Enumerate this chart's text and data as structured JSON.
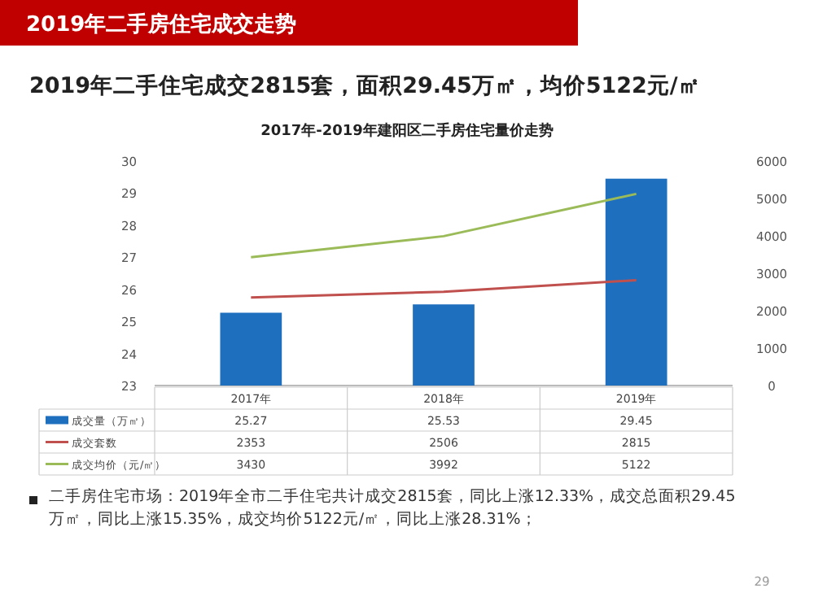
{
  "chart_data": {
    "type": "bar",
    "title": "2017年-2019年建阳区二手房住宅量价走势",
    "subtitle": "2019年二手住宅成交2815套，面积29.45万㎡，均价5122元/㎡",
    "annotations": [
      "2019年二手房住宅成交走势",
      "二手房住宅市场：2019年全市二手住宅共计成交2815套，同比上涨12.33%，成交总面积29.45万㎡，同比上涨15.35%，成交均价5122元/㎡，同比上涨28.31%；",
      "29"
    ],
    "categories": [
      "2017年",
      "2018年",
      "2019年"
    ],
    "series": [
      {
        "name": "成交量（万㎡）",
        "color": "#1f6fbf",
        "values": [
          25.27,
          25.53,
          29.45
        ]
      },
      {
        "name": "成交套数",
        "type": "line",
        "axis": "y2",
        "color": "#c0504d",
        "values": [
          2353,
          2506,
          2815
        ]
      },
      {
        "name": "成交均价（元/㎡）",
        "type": "line",
        "axis": "y2",
        "color": "#9bbb59",
        "values": [
          3430,
          3992,
          5122
        ]
      }
    ],
    "ylim": [
      23,
      30
    ],
    "yticks": [
      23,
      24,
      25,
      26,
      27,
      28,
      29,
      30
    ],
    "y2lim": [
      0,
      6000
    ],
    "y2ticks": [
      0,
      1000,
      2000,
      3000,
      4000,
      5000,
      6000
    ],
    "data_labels": true,
    "legend": "bottom",
    "grid": false,
    "marker": "none",
    "line_style": "solid"
  }
}
